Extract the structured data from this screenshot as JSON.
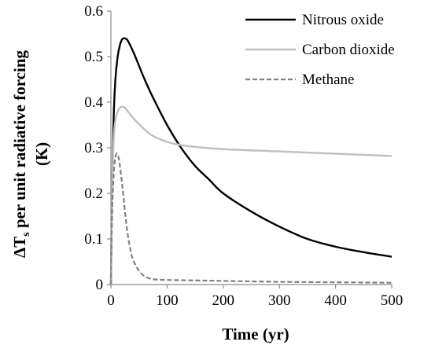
{
  "chart_data": {
    "type": "line",
    "title": "",
    "xlabel": "Time (yr)",
    "ylabel_main": "ΔT",
    "ylabel_sub": "s",
    "ylabel_rest": " per unit radiative forcing",
    "ylabel_line2": "(K)",
    "xlim": [
      0,
      500
    ],
    "ylim": [
      0,
      0.6
    ],
    "x_ticks": [
      0,
      100,
      200,
      300,
      400,
      500
    ],
    "x_tick_labels": [
      "0",
      "100",
      "200",
      "300",
      "400",
      "500"
    ],
    "y_ticks": [
      0,
      0.1,
      0.2,
      0.3,
      0.4,
      0.5,
      0.6
    ],
    "y_tick_labels": [
      "0",
      "0.1",
      "0.2",
      "0.3",
      "0.4",
      "0.5",
      "0.6"
    ],
    "grid": false,
    "legend_position": "top-right",
    "series": [
      {
        "name": "Nitrous oxide",
        "color": "#000000",
        "dash": "solid",
        "x": [
          0,
          2,
          5,
          8,
          12,
          16,
          20,
          25,
          30,
          40,
          50,
          60,
          75,
          100,
          125,
          150,
          175,
          200,
          250,
          300,
          350,
          400,
          450,
          500
        ],
        "y": [
          0,
          0.2,
          0.37,
          0.45,
          0.5,
          0.525,
          0.538,
          0.54,
          0.535,
          0.51,
          0.48,
          0.45,
          0.41,
          0.35,
          0.3,
          0.26,
          0.23,
          0.2,
          0.16,
          0.127,
          0.1,
          0.083,
          0.071,
          0.061
        ]
      },
      {
        "name": "Carbon dioxide",
        "color": "#bfbfbf",
        "dash": "solid",
        "x": [
          0,
          2,
          5,
          8,
          12,
          16,
          20,
          25,
          30,
          40,
          50,
          60,
          75,
          100,
          125,
          150,
          200,
          300,
          400,
          500
        ],
        "y": [
          0,
          0.2,
          0.32,
          0.36,
          0.38,
          0.388,
          0.39,
          0.388,
          0.38,
          0.365,
          0.352,
          0.34,
          0.326,
          0.313,
          0.306,
          0.302,
          0.297,
          0.292,
          0.287,
          0.282
        ]
      },
      {
        "name": "Methane",
        "color": "#808080",
        "dash": "dashed",
        "x": [
          0,
          2,
          4,
          6,
          8,
          10,
          12,
          15,
          20,
          25,
          30,
          35,
          40,
          50,
          60,
          70,
          80,
          100,
          150,
          200,
          300,
          400,
          500
        ],
        "y": [
          0,
          0.15,
          0.22,
          0.26,
          0.28,
          0.287,
          0.285,
          0.27,
          0.22,
          0.16,
          0.11,
          0.075,
          0.052,
          0.03,
          0.018,
          0.013,
          0.011,
          0.01,
          0.009,
          0.008,
          0.006,
          0.005,
          0.004
        ]
      }
    ]
  }
}
